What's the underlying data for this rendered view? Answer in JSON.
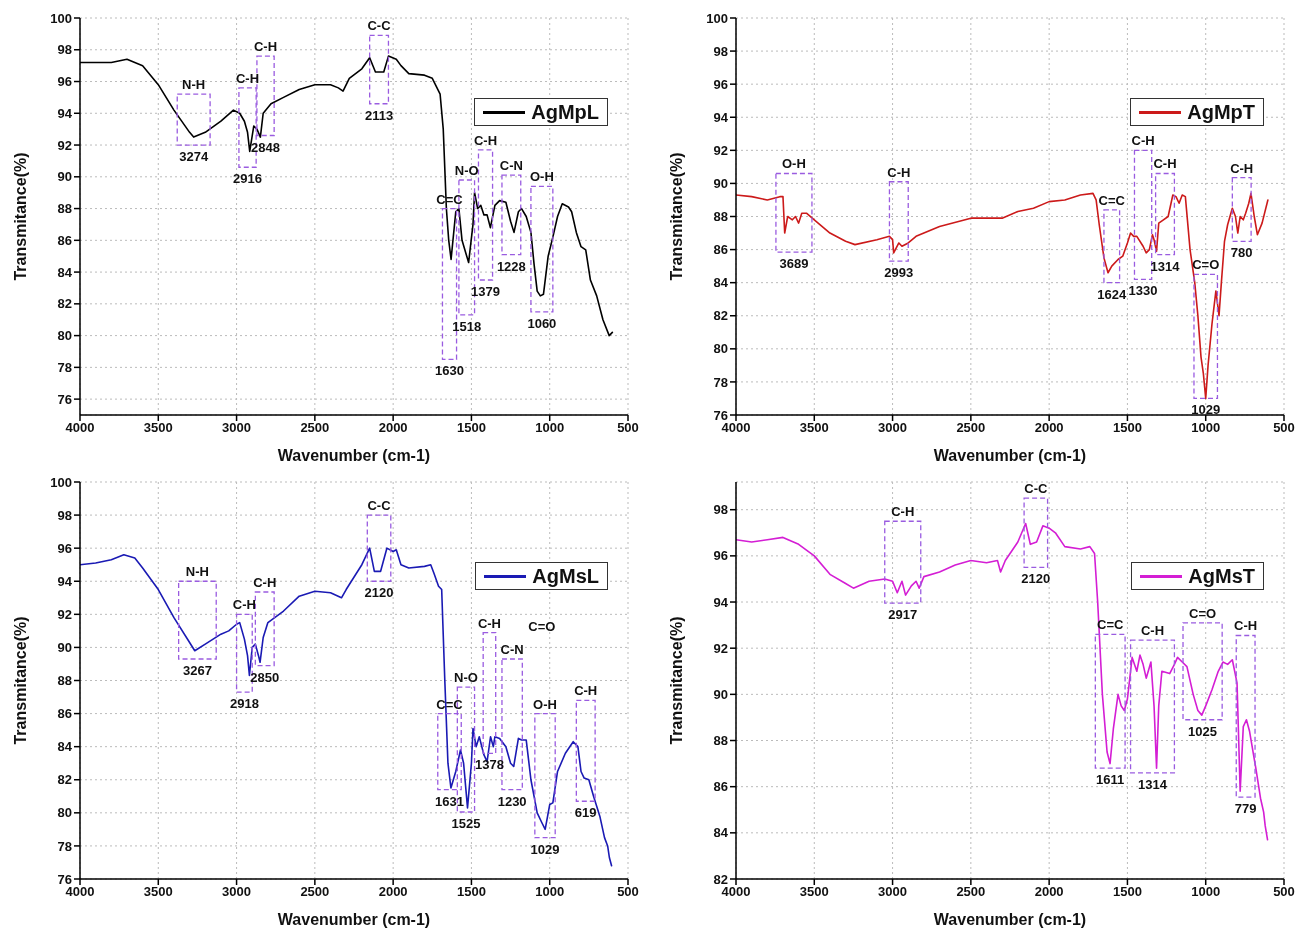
{
  "chart_data": [
    {
      "type": "line",
      "xlabel": "Wavenumber (cm-1)",
      "ylabel": "Transmitance(%)",
      "xlim": [
        4000,
        500
      ],
      "xticks": [
        4000,
        3500,
        3000,
        2500,
        2000,
        1500,
        1000,
        500
      ],
      "ylim": [
        75,
        100
      ],
      "yticks": [
        76,
        78,
        80,
        82,
        84,
        86,
        88,
        90,
        92,
        94,
        96,
        98,
        100
      ],
      "grid": true,
      "legend": "top right",
      "marker": "none",
      "x": [
        4000,
        3800,
        3700,
        3600,
        3500,
        3400,
        3300,
        3274,
        3200,
        3100,
        3020,
        2980,
        2950,
        2930,
        2916,
        2890,
        2870,
        2848,
        2830,
        2780,
        2700,
        2600,
        2500,
        2400,
        2350,
        2320,
        2280,
        2200,
        2150,
        2113,
        2060,
        2030,
        1980,
        1950,
        1900,
        1800,
        1750,
        1700,
        1680,
        1660,
        1645,
        1630,
        1600,
        1580,
        1560,
        1518,
        1490,
        1480,
        1460,
        1440,
        1420,
        1400,
        1379,
        1350,
        1320,
        1280,
        1250,
        1228,
        1200,
        1180,
        1150,
        1120,
        1100,
        1080,
        1060,
        1040,
        1010,
        980,
        950,
        920,
        880,
        860,
        830,
        800,
        770,
        740,
        700,
        660,
        620,
        600
      ],
      "series": [
        {
          "name": "AgMpL",
          "color": "#000000",
          "values": [
            97.2,
            97.2,
            97.4,
            97.0,
            95.8,
            94.2,
            92.8,
            92.5,
            92.8,
            93.5,
            94.2,
            94.0,
            93.5,
            92.8,
            91.6,
            93.2,
            93.0,
            92.5,
            94.0,
            94.6,
            95.0,
            95.5,
            95.8,
            95.8,
            95.6,
            95.4,
            96.2,
            96.8,
            97.5,
            96.6,
            96.6,
            97.6,
            97.4,
            97.0,
            96.5,
            96.4,
            96.2,
            95.2,
            93,
            88,
            86,
            84.8,
            87.8,
            88.0,
            86,
            84.6,
            87,
            89.0,
            88,
            88.2,
            87.6,
            87.6,
            86.8,
            88.2,
            88.5,
            88.4,
            87.2,
            86.5,
            87.8,
            88.0,
            87.5,
            86.5,
            84.5,
            82.8,
            82.5,
            82.6,
            85,
            86.2,
            87.5,
            88.3,
            88.1,
            87.8,
            86.5,
            85.6,
            85.4,
            83.5,
            82.5,
            81,
            80,
            80.2
          ]
        }
      ],
      "annotations": [
        "N-H",
        "3274",
        "C-H",
        "2916",
        "C-H",
        "2848",
        "C-C",
        "2113",
        "C=C",
        "1630",
        "N-O",
        "1518",
        "C-H",
        "1379",
        "C-N",
        "1228",
        "O-H",
        "1060"
      ]
    },
    {
      "type": "line",
      "xlabel": "Wavenumber (cm-1)",
      "ylabel": "Transmitance(%)",
      "xlim": [
        4000,
        500
      ],
      "xticks": [
        4000,
        3500,
        3000,
        2500,
        2000,
        1500,
        1000,
        500
      ],
      "ylim": [
        76,
        100
      ],
      "yticks": [
        76,
        78,
        80,
        82,
        84,
        86,
        88,
        90,
        92,
        94,
        96,
        98,
        100
      ],
      "grid": true,
      "legend": "top right",
      "marker": "none",
      "x": [
        4000,
        3900,
        3800,
        3720,
        3700,
        3689,
        3670,
        3640,
        3620,
        3600,
        3580,
        3550,
        3500,
        3400,
        3300,
        3240,
        3100,
        3020,
        3000,
        2993,
        2960,
        2940,
        2900,
        2850,
        2700,
        2500,
        2300,
        2200,
        2100,
        2000,
        1900,
        1800,
        1720,
        1700,
        1680,
        1650,
        1624,
        1600,
        1560,
        1530,
        1500,
        1480,
        1460,
        1440,
        1400,
        1380,
        1360,
        1340,
        1330,
        1314,
        1300,
        1270,
        1240,
        1210,
        1190,
        1170,
        1150,
        1130,
        1100,
        1070,
        1050,
        1030,
        1015,
        1000,
        985,
        960,
        935,
        915,
        900,
        880,
        860,
        830,
        810,
        795,
        780,
        760,
        745,
        725,
        711,
        690,
        670,
        640,
        603
      ],
      "series": [
        {
          "name": "AgMpT",
          "color": "#cc1a1a",
          "values": [
            89.3,
            89.2,
            89.0,
            89.2,
            89.2,
            87.0,
            88.0,
            87.8,
            88.0,
            87.6,
            88.2,
            88.2,
            87.8,
            87.0,
            86.5,
            86.3,
            86.6,
            86.8,
            86.6,
            85.8,
            86.4,
            86.2,
            86.4,
            86.8,
            87.4,
            87.9,
            87.9,
            88.3,
            88.5,
            88.9,
            89.0,
            89.3,
            89.4,
            89.0,
            87.5,
            85.5,
            84.6,
            85.0,
            85.4,
            85.6,
            86.4,
            87.0,
            86.8,
            86.8,
            86.2,
            85.8,
            86.0,
            86.9,
            86.6,
            85.9,
            87.6,
            87.8,
            88.0,
            89.3,
            89.2,
            88.8,
            89.3,
            89.2,
            86,
            84,
            82,
            79.5,
            78.5,
            77.0,
            79,
            81.5,
            83.5,
            82.0,
            84.0,
            86.5,
            87.5,
            88.5,
            88.0,
            87.0,
            88.0,
            87.8,
            88.2,
            88.8,
            89.4,
            88.0,
            86.9,
            87.6,
            89.0
          ]
        }
      ],
      "annotations": [
        "O-H",
        "3689",
        "C-H",
        "2993",
        "C=C",
        "1624",
        "C-H",
        "1330",
        "C-H",
        "1314",
        "C=O",
        "1029",
        "C-H",
        "780"
      ]
    },
    {
      "type": "line",
      "xlabel": "Wavenumber (cm-1)",
      "ylabel": "Transmitance(%)",
      "xlim": [
        4000,
        500
      ],
      "xticks": [
        4000,
        3500,
        3000,
        2500,
        2000,
        1500,
        1000,
        500
      ],
      "ylim": [
        76,
        100
      ],
      "yticks": [
        76,
        78,
        80,
        82,
        84,
        86,
        88,
        90,
        92,
        94,
        96,
        98,
        100
      ],
      "grid": true,
      "legend": "top right",
      "marker": "none",
      "x": [
        4000,
        3900,
        3800,
        3720,
        3650,
        3600,
        3500,
        3400,
        3300,
        3267,
        3200,
        3100,
        3050,
        3000,
        2980,
        2950,
        2930,
        2918,
        2900,
        2880,
        2860,
        2850,
        2830,
        2800,
        2700,
        2600,
        2500,
        2400,
        2330,
        2300,
        2200,
        2150,
        2120,
        2080,
        2040,
        2000,
        1980,
        1950,
        1900,
        1800,
        1760,
        1740,
        1710,
        1690,
        1670,
        1650,
        1631,
        1600,
        1570,
        1550,
        1525,
        1500,
        1490,
        1470,
        1450,
        1420,
        1400,
        1378,
        1360,
        1350,
        1320,
        1280,
        1250,
        1230,
        1200,
        1180,
        1150,
        1120,
        1080,
        1050,
        1029,
        1000,
        980,
        950,
        900,
        850,
        820,
        800,
        780,
        750,
        720,
        680,
        650,
        630,
        619,
        605
      ],
      "series": [
        {
          "name": "AgMsL",
          "color": "#1a1ab4",
          "values": [
            95.0,
            95.1,
            95.3,
            95.6,
            95.4,
            94.8,
            93.5,
            91.8,
            90.3,
            89.8,
            90.2,
            90.8,
            91.0,
            91.4,
            91.5,
            90.5,
            89.5,
            88.3,
            90.0,
            90.2,
            89.5,
            89.1,
            90.6,
            91.5,
            92.2,
            93.1,
            93.4,
            93.3,
            93.0,
            93.5,
            95.0,
            96.0,
            94.6,
            94.6,
            96.0,
            95.8,
            95.9,
            95.0,
            94.8,
            94.9,
            95.0,
            94.5,
            93.7,
            93.5,
            88,
            83,
            81.5,
            82.5,
            83.8,
            83,
            80.3,
            83,
            85.1,
            84.0,
            84.6,
            83.5,
            83.1,
            84.6,
            84.0,
            84.6,
            84.5,
            84.0,
            83.0,
            82.8,
            84.5,
            84.4,
            84.4,
            82,
            80,
            79.4,
            79.0,
            80.5,
            80.6,
            82.5,
            83.6,
            84.3,
            84.0,
            82.5,
            82.1,
            82.0,
            81,
            79.8,
            78.5,
            78.0,
            77.3,
            76.8
          ]
        }
      ],
      "annotations": [
        "N-H",
        "3267",
        "C-H",
        "2918",
        "C-H",
        "2850",
        "C-C",
        "2120",
        "C=C",
        "1631",
        "N-O",
        "1525",
        "C-H",
        "1378",
        "C-N",
        "1230",
        "O-H",
        "1029",
        "C-H",
        "619",
        "C=O"
      ]
    },
    {
      "type": "line",
      "xlabel": "Wavenumber (cm-1)",
      "ylabel": "Transmitance(%)",
      "xlim": [
        4000,
        500
      ],
      "xticks": [
        4000,
        3500,
        3000,
        2500,
        2000,
        1500,
        1000,
        500
      ],
      "ylim": [
        82,
        99.2
      ],
      "yticks": [
        82,
        84,
        86,
        88,
        90,
        92,
        94,
        96,
        98
      ],
      "grid": true,
      "legend": "top right",
      "marker": "none",
      "x": [
        4000,
        3900,
        3800,
        3700,
        3600,
        3500,
        3400,
        3300,
        3250,
        3150,
        3050,
        3000,
        2970,
        2940,
        2917,
        2880,
        2850,
        2830,
        2800,
        2700,
        2600,
        2500,
        2400,
        2330,
        2310,
        2280,
        2200,
        2150,
        2120,
        2080,
        2040,
        2000,
        1960,
        1900,
        1800,
        1740,
        1710,
        1690,
        1660,
        1630,
        1611,
        1590,
        1560,
        1540,
        1520,
        1500,
        1470,
        1440,
        1420,
        1400,
        1380,
        1350,
        1330,
        1314,
        1300,
        1280,
        1230,
        1200,
        1180,
        1150,
        1120,
        1080,
        1050,
        1025,
        1000,
        960,
        920,
        890,
        860,
        830,
        800,
        780,
        760,
        740,
        720,
        680,
        650,
        630,
        620,
        605
      ],
      "series": [
        {
          "name": "AgMsT",
          "color": "#d41ed4",
          "values": [
            96.7,
            96.6,
            96.7,
            96.8,
            96.5,
            96.0,
            95.2,
            94.8,
            94.6,
            94.9,
            95.0,
            94.9,
            94.4,
            94.9,
            94.3,
            94.7,
            94.9,
            94.6,
            95.1,
            95.3,
            95.6,
            95.8,
            95.7,
            95.8,
            95.3,
            95.8,
            96.6,
            97.4,
            96.5,
            96.6,
            97.3,
            97.2,
            97.0,
            96.4,
            96.3,
            96.4,
            96.1,
            94,
            90,
            87.5,
            87.0,
            88.5,
            90.0,
            89.5,
            89.3,
            89.8,
            91.6,
            91.0,
            91.7,
            91.3,
            90.7,
            91.4,
            89.5,
            86.8,
            89.5,
            91.0,
            90.9,
            91.3,
            91.6,
            91.4,
            91.2,
            90.0,
            89.3,
            89.1,
            89.5,
            90.2,
            91.0,
            91.4,
            91.3,
            91.5,
            90.5,
            85.8,
            88.6,
            88.9,
            88.4,
            86.8,
            85.5,
            84.9,
            84.3,
            83.7
          ]
        }
      ],
      "annotations": [
        "C-H",
        "2917",
        "C-C",
        "2120",
        "C=C",
        "1611",
        "C-H",
        "1314",
        "C=O",
        "1025",
        "C-H",
        "779"
      ]
    }
  ]
}
